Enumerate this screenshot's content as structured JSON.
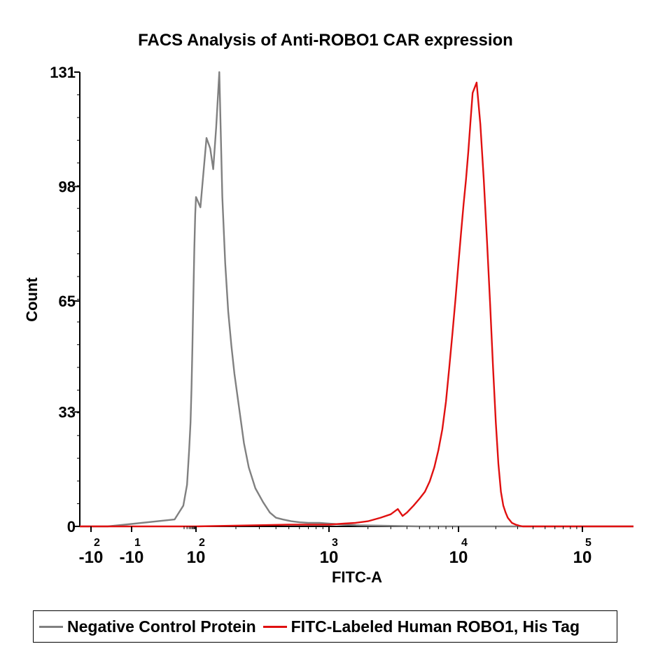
{
  "chart_data": {
    "type": "line",
    "title": "FACS Analysis of Anti-ROBO1 CAR expression",
    "xlabel": "FITC-A",
    "ylabel": "Count",
    "x_scale": "log",
    "xlim": [
      -300,
      170000
    ],
    "ylim": [
      0,
      131
    ],
    "yticks": [
      "0",
      "33",
      "65",
      "98",
      "131"
    ],
    "ytick_values": [
      0,
      33,
      65,
      98,
      131
    ],
    "xticks": [
      {
        "base": "-10",
        "exp": "2",
        "value": -100
      },
      {
        "base": "-10",
        "exp": "1",
        "value": -10
      },
      {
        "base": "10",
        "exp": "2",
        "value": 100
      },
      {
        "base": "10",
        "exp": "3",
        "value": 1000
      },
      {
        "base": "10",
        "exp": "4",
        "value": 10000
      },
      {
        "base": "10",
        "exp": "5",
        "value": 100000
      }
    ],
    "grid": false,
    "legend_position": "bottom",
    "series": [
      {
        "name": "Negative Control Protein",
        "color": "#808080",
        "x": [
          -300,
          -80,
          -40,
          -15,
          5,
          18,
          30,
          40,
          48,
          55,
          62,
          70,
          80,
          90,
          100,
          108,
          115,
          120,
          128,
          135,
          142,
          150,
          158,
          166,
          175,
          185,
          195,
          210,
          230,
          250,
          280,
          320,
          360,
          400,
          450,
          520,
          600,
          700,
          850,
          1000,
          1300,
          1700,
          2500,
          5000,
          20000,
          170000
        ],
        "y": [
          0,
          0,
          0,
          0.5,
          2,
          6,
          12,
          22,
          30,
          40,
          52,
          66,
          80,
          90,
          95,
          92,
          104,
          112,
          109,
          103,
          115,
          131,
          95,
          76,
          62,
          52,
          44,
          35,
          24,
          17,
          11,
          7,
          4,
          2.5,
          2,
          1.5,
          1.2,
          1,
          1,
          0.8,
          0.5,
          0.3,
          0.2,
          0,
          0,
          0
        ]
      },
      {
        "name": "FITC-Labeled Human ROBO1, His Tag",
        "color": "#e01010",
        "x": [
          -300,
          -20,
          100,
          500,
          1000,
          1300,
          1600,
          2000,
          2500,
          3000,
          3400,
          3700,
          4000,
          4500,
          5000,
          5500,
          6000,
          6500,
          7000,
          7500,
          8000,
          8500,
          9000,
          9500,
          10000,
          10500,
          11000,
          11500,
          12000,
          12500,
          13000,
          14000,
          15000,
          16000,
          17000,
          18000,
          19000,
          20000,
          21000,
          22000,
          23000,
          24000,
          25000,
          27000,
          29000,
          31000,
          33000,
          36000,
          40000,
          50000,
          80000,
          170000
        ],
        "y": [
          0,
          0,
          0,
          0.5,
          0.5,
          0.8,
          1,
          1.5,
          2.5,
          3.5,
          5,
          3,
          4,
          6,
          8,
          10,
          13,
          17,
          22,
          28,
          36,
          46,
          56,
          66,
          76,
          85,
          93,
          100,
          108,
          117,
          125,
          128,
          116,
          100,
          82,
          64,
          46,
          30,
          18,
          10,
          6,
          4,
          2.5,
          1,
          0.5,
          0.2,
          0,
          0,
          0,
          0,
          0,
          0
        ]
      }
    ]
  }
}
